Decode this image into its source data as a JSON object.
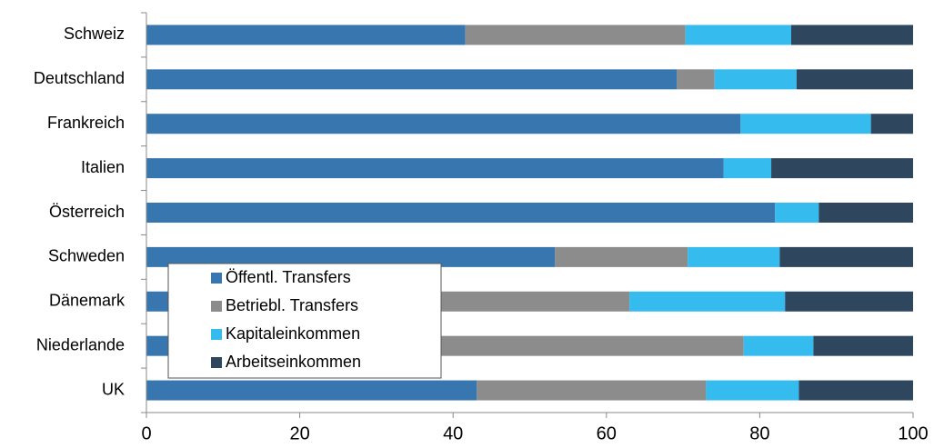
{
  "chart_data": {
    "type": "stacked_barh",
    "categories": [
      "Schweiz",
      "Deutschland",
      "Frankreich",
      "Italien",
      "Österreich",
      "Schweden",
      "Dänemark",
      "Niederlande",
      "UK"
    ],
    "series": [
      {
        "name": "Öffentl. Transfers",
        "color": "#3776ae",
        "values": [
          41.6,
          69.2,
          77.5,
          75.3,
          82.0,
          53.3,
          38.3,
          36.9,
          43.1
        ]
      },
      {
        "name": "Betriebl. Transfers",
        "color": "#8c8c8c",
        "values": [
          28.7,
          4.9,
          0,
          0,
          0,
          17.3,
          24.7,
          41.0,
          29.9
        ]
      },
      {
        "name": "Kapitaleinkommen",
        "color": "#36bbee",
        "values": [
          13.8,
          10.7,
          17.0,
          6.2,
          5.7,
          12.0,
          20.3,
          9.1,
          12.1
        ]
      },
      {
        "name": "Arbeitseinkommen",
        "color": "#2e475f",
        "values": [
          15.9,
          15.2,
          5.5,
          18.5,
          12.3,
          17.4,
          16.7,
          13.0,
          14.9
        ]
      }
    ],
    "xlim": [
      0,
      100
    ],
    "xticks": [
      0,
      20,
      40,
      60,
      80,
      100
    ]
  }
}
